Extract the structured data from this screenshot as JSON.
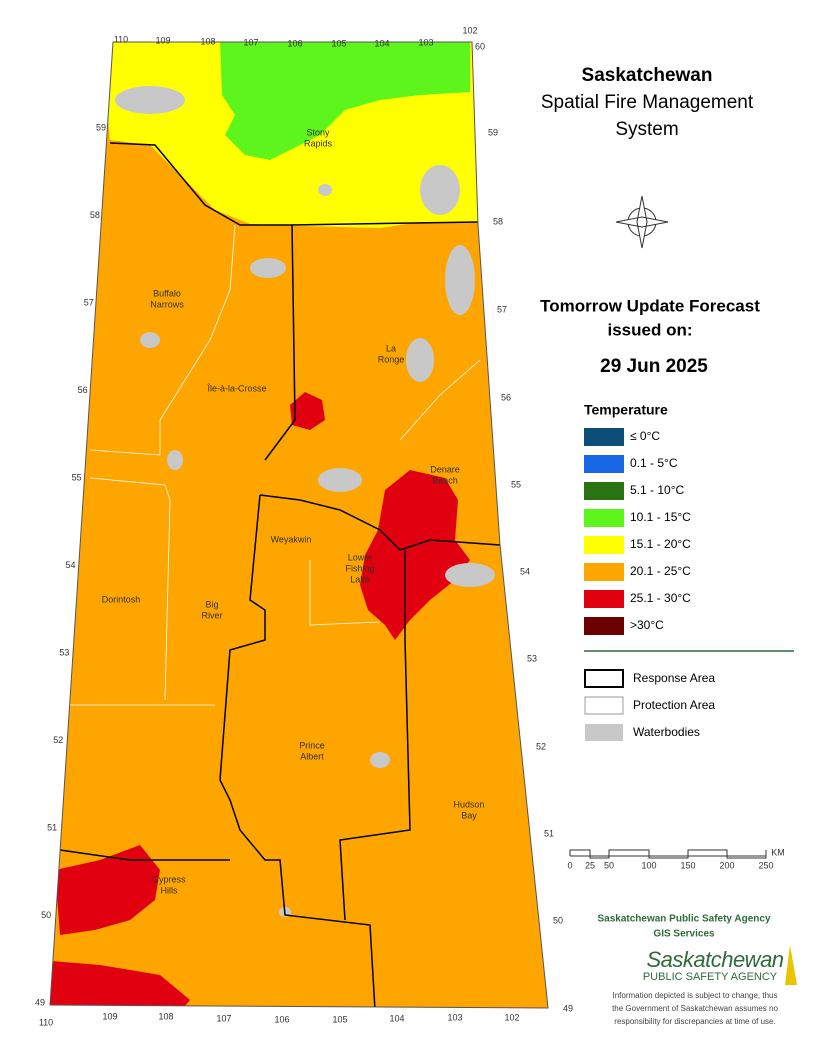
{
  "header": {
    "title": "Saskatchewan",
    "subtitle_lines": [
      "Spatial Fire Management",
      "System"
    ]
  },
  "forecast": {
    "heading_lines": [
      "Tomorrow Update Forecast",
      "issued on:"
    ],
    "date": "29 Jun 2025"
  },
  "legend": {
    "title": "Temperature",
    "items": [
      {
        "label": "≤ 0°C",
        "color": "#0b4f78"
      },
      {
        "label": "0.1 - 5°C",
        "color": "#1666e6"
      },
      {
        "label": "5.1 - 10°C",
        "color": "#2a7312"
      },
      {
        "label": "10.1 - 15°C",
        "color": "#5df51c"
      },
      {
        "label": "15.1 - 20°C",
        "color": "#ffff00"
      },
      {
        "label": "20.1 - 25°C",
        "color": "#ffa500"
      },
      {
        "label": "25.1 - 30°C",
        "color": "#e1000f"
      },
      {
        "label": ">30°C",
        "color": "#6a0000"
      }
    ],
    "boundaries": [
      "Response Area",
      "Protection Area",
      "Waterbodies"
    ]
  },
  "map": {
    "longitudes_top": [
      "110",
      "109",
      "108",
      "107",
      "106",
      "105",
      "104",
      "103",
      "102"
    ],
    "corner_top_right": "60",
    "longitudes_bottom": [
      "110",
      "109",
      "108",
      "107",
      "106",
      "105",
      "104",
      "103",
      "102"
    ],
    "latitudes_left": [
      "59",
      "58",
      "57",
      "56",
      "55",
      "54",
      "53",
      "52",
      "51",
      "50",
      "49"
    ],
    "latitudes_right": [
      "59",
      "58",
      "57",
      "56",
      "55",
      "54",
      "53",
      "52",
      "51",
      "50",
      "49"
    ],
    "places": [
      {
        "lines": [
          "Stony",
          "Rapids"
        ]
      },
      {
        "lines": [
          "Buffalo",
          "Narrows"
        ]
      },
      {
        "lines": [
          "La",
          "Ronge"
        ]
      },
      {
        "lines": [
          "Île-à-la-Crosse"
        ]
      },
      {
        "lines": [
          "Denare",
          "Beach"
        ]
      },
      {
        "lines": [
          "Weyakwin"
        ]
      },
      {
        "lines": [
          "Lower",
          "Fishing",
          "Lake"
        ]
      },
      {
        "lines": [
          "Dorintosh"
        ]
      },
      {
        "lines": [
          "Big",
          "River"
        ]
      },
      {
        "lines": [
          "Prince",
          "Albert"
        ]
      },
      {
        "lines": [
          "Hudson",
          "Bay"
        ]
      },
      {
        "lines": [
          "Cypress",
          "Hills"
        ]
      }
    ]
  },
  "scale": {
    "labels": [
      "0",
      "25",
      "50",
      "100",
      "150",
      "200",
      "250"
    ],
    "unit": "KM"
  },
  "agency": {
    "name": "Saskatchewan Public Safety Agency",
    "department": "GIS  Services",
    "logo_main": "Saskatchewan",
    "logo_sub": "PUBLIC SAFETY AGENCY",
    "disclaimer_lines": [
      "Information depicted is subject to change, thus",
      "the Government of Saskatchewan assumes no",
      "responsibility for discrepancies at time of use."
    ]
  }
}
